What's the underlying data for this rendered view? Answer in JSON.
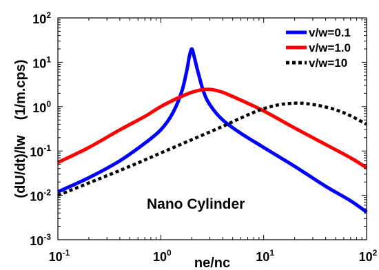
{
  "chart_data": {
    "type": "line",
    "xlabel": "ne/nc",
    "ylabel": "(dU/dt)/lw    (1/m.cps)",
    "x_scale": "log",
    "y_scale": "log",
    "xlim": [
      0.1,
      100
    ],
    "ylim": [
      0.001,
      100
    ],
    "x_ticks": [
      {
        "base": "10",
        "exp": "-1",
        "value": 0.1
      },
      {
        "base": "10",
        "exp": "0",
        "value": 1
      },
      {
        "base": "10",
        "exp": "1",
        "value": 10
      },
      {
        "base": "10",
        "exp": "2",
        "value": 100
      }
    ],
    "y_ticks": [
      {
        "base": "10",
        "exp": "-3",
        "value": 0.001
      },
      {
        "base": "10",
        "exp": "-2",
        "value": 0.01
      },
      {
        "base": "10",
        "exp": "-1",
        "value": 0.1
      },
      {
        "base": "10",
        "exp": "0",
        "value": 1
      },
      {
        "base": "10",
        "exp": "1",
        "value": 10
      },
      {
        "base": "10",
        "exp": "2",
        "value": 100
      }
    ],
    "grid": false,
    "legend_position": "top-right",
    "annotation": "Nano Cylinder",
    "series": [
      {
        "name": "v/w=0.1",
        "color": "#0000ff",
        "line_style": "solid",
        "x": [
          0.1,
          0.2,
          0.4,
          0.7,
          1.0,
          1.3,
          1.6,
          1.8,
          1.9,
          2.0,
          2.1,
          2.3,
          2.6,
          3.0,
          4.0,
          6.0,
          10,
          20,
          40,
          70,
          100
        ],
        "y": [
          0.012,
          0.025,
          0.06,
          0.15,
          0.3,
          0.7,
          2.2,
          7.0,
          14,
          20,
          14,
          6.0,
          2.2,
          1.1,
          0.5,
          0.25,
          0.12,
          0.045,
          0.016,
          0.0075,
          0.0042
        ]
      },
      {
        "name": "v/w=1.0",
        "color": "#ff0000",
        "line_style": "solid",
        "x": [
          0.1,
          0.2,
          0.4,
          0.7,
          1.0,
          1.5,
          2.0,
          2.5,
          2.8,
          3.2,
          4.0,
          6.0,
          10,
          20,
          40,
          70,
          100
        ],
        "y": [
          0.055,
          0.12,
          0.3,
          0.6,
          1.0,
          1.6,
          2.1,
          2.4,
          2.45,
          2.4,
          2.1,
          1.4,
          0.8,
          0.33,
          0.14,
          0.07,
          0.042
        ]
      },
      {
        "name": "v/w=10",
        "color": "#000000",
        "line_style": "dotted",
        "x": [
          0.1,
          0.2,
          0.5,
          1.0,
          2.0,
          4.0,
          7.0,
          10,
          14,
          18,
          20,
          25,
          35,
          50,
          70,
          100
        ],
        "y": [
          0.01,
          0.019,
          0.045,
          0.09,
          0.18,
          0.36,
          0.65,
          0.9,
          1.1,
          1.18,
          1.2,
          1.18,
          1.05,
          0.85,
          0.62,
          0.4
        ]
      }
    ]
  }
}
